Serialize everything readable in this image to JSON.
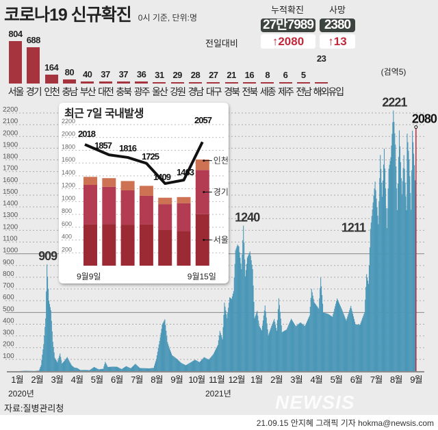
{
  "header": {
    "title": "코로나19 신규확진",
    "subtitle": "0시 기준, 단위:명",
    "cumulative_label": "누적확진",
    "cumulative_value": "27만7989",
    "deaths_label": "사망",
    "deaths_value": "2380",
    "prev_day_label": "전일대비",
    "cumulative_change": "↑2080",
    "deaths_change": "↑13"
  },
  "chart_data": [
    {
      "type": "bar",
      "categories": [
        "서울",
        "경기",
        "인천",
        "충남",
        "부산",
        "대전",
        "충북",
        "광주",
        "울산",
        "강원",
        "경남",
        "대구",
        "경북",
        "전북",
        "세종",
        "제주",
        "전남",
        "해외유입"
      ],
      "values": [
        804,
        688,
        164,
        80,
        40,
        37,
        37,
        36,
        31,
        29,
        28,
        27,
        21,
        16,
        8,
        6,
        5,
        23
      ],
      "annotation": "(검역5)",
      "colors": {
        "bar": "#a6343f"
      }
    },
    {
      "type": "bar",
      "ylim": [
        0,
        2200
      ],
      "yticks": [
        100,
        200,
        300,
        400,
        500,
        600,
        700,
        800,
        900,
        1000,
        1100,
        1200,
        1300,
        1400,
        1500,
        1600,
        1700,
        1800,
        1900,
        2000,
        2100,
        2200
      ],
      "grid": true,
      "xlabels": [
        "1월",
        "2월",
        "3월",
        "4월",
        "5월",
        "6월",
        "7월",
        "8월",
        "9월",
        "10월",
        "11월",
        "12월",
        "1월",
        "2월",
        "3월",
        "4월",
        "5월",
        "6월",
        "7월",
        "8월",
        "9월"
      ],
      "year_labels": [
        "2020년",
        "2021년"
      ],
      "annotations": [
        {
          "date": "2020-02-29",
          "label": "909"
        },
        {
          "date": "2020-12-25",
          "label": "1240"
        },
        {
          "date": "2021-07-07",
          "label": "1211"
        },
        {
          "date": "2021-08-11",
          "label": "2221"
        },
        {
          "date": "2021-09-15",
          "label": "2080"
        }
      ],
      "colors": {
        "bar": "#4b97b7",
        "today": "#c0283a"
      },
      "points": [
        [
          "2020-01-20",
          1
        ],
        [
          "2020-01-27",
          3
        ],
        [
          "2020-02-03",
          2
        ],
        [
          "2020-02-10",
          1
        ],
        [
          "2020-02-17",
          5
        ],
        [
          "2020-02-20",
          50
        ],
        [
          "2020-02-24",
          230
        ],
        [
          "2020-02-27",
          450
        ],
        [
          "2020-02-29",
          909
        ],
        [
          "2020-03-03",
          600
        ],
        [
          "2020-03-06",
          518
        ],
        [
          "2020-03-09",
          250
        ],
        [
          "2020-03-12",
          114
        ],
        [
          "2020-03-16",
          74
        ],
        [
          "2020-03-20",
          150
        ],
        [
          "2020-03-23",
          64
        ],
        [
          "2020-03-27",
          90
        ],
        [
          "2020-03-31",
          120
        ],
        [
          "2020-04-03",
          86
        ],
        [
          "2020-04-07",
          47
        ],
        [
          "2020-04-11",
          30
        ],
        [
          "2020-04-15",
          27
        ],
        [
          "2020-04-20",
          9
        ],
        [
          "2020-04-27",
          10
        ],
        [
          "2020-05-04",
          8
        ],
        [
          "2020-05-11",
          35
        ],
        [
          "2020-05-18",
          15
        ],
        [
          "2020-05-25",
          20
        ],
        [
          "2020-05-28",
          79
        ],
        [
          "2020-06-01",
          35
        ],
        [
          "2020-06-08",
          38
        ],
        [
          "2020-06-15",
          37
        ],
        [
          "2020-06-22",
          17
        ],
        [
          "2020-06-29",
          42
        ],
        [
          "2020-07-06",
          24
        ],
        [
          "2020-07-13",
          62
        ],
        [
          "2020-07-20",
          26
        ],
        [
          "2020-07-27",
          25
        ],
        [
          "2020-08-03",
          23
        ],
        [
          "2020-08-10",
          28
        ],
        [
          "2020-08-14",
          103
        ],
        [
          "2020-08-17",
          197
        ],
        [
          "2020-08-20",
          288
        ],
        [
          "2020-08-23",
          397
        ],
        [
          "2020-08-27",
          441
        ],
        [
          "2020-08-31",
          248
        ],
        [
          "2020-09-03",
          195
        ],
        [
          "2020-09-07",
          136
        ],
        [
          "2020-09-14",
          106
        ],
        [
          "2020-09-21",
          70
        ],
        [
          "2020-09-28",
          50
        ],
        [
          "2020-10-05",
          73
        ],
        [
          "2020-10-12",
          97
        ],
        [
          "2020-10-19",
          76
        ],
        [
          "2020-10-26",
          119
        ],
        [
          "2020-11-02",
          97
        ],
        [
          "2020-11-09",
          143
        ],
        [
          "2020-11-16",
          223
        ],
        [
          "2020-11-19",
          343
        ],
        [
          "2020-11-23",
          271
        ],
        [
          "2020-11-26",
          583
        ],
        [
          "2020-11-30",
          451
        ],
        [
          "2020-12-04",
          629
        ],
        [
          "2020-12-07",
          615
        ],
        [
          "2020-12-10",
          682
        ],
        [
          "2020-12-13",
          1030
        ],
        [
          "2020-12-16",
          1078
        ],
        [
          "2020-12-18",
          1062
        ],
        [
          "2020-12-22",
          869
        ],
        [
          "2020-12-25",
          1240
        ],
        [
          "2020-12-28",
          808
        ],
        [
          "2020-12-31",
          967
        ],
        [
          "2021-01-04",
          1020
        ],
        [
          "2021-01-08",
          869
        ],
        [
          "2021-01-11",
          451
        ],
        [
          "2021-01-15",
          513
        ],
        [
          "2021-01-18",
          389
        ],
        [
          "2021-01-22",
          346
        ],
        [
          "2021-01-27",
          559
        ],
        [
          "2021-02-01",
          305
        ],
        [
          "2021-02-05",
          370
        ],
        [
          "2021-02-10",
          444
        ],
        [
          "2021-02-14",
          344
        ],
        [
          "2021-02-17",
          621
        ],
        [
          "2021-02-22",
          332
        ],
        [
          "2021-03-01",
          355
        ],
        [
          "2021-03-08",
          446
        ],
        [
          "2021-03-15",
          382
        ],
        [
          "2021-03-22",
          415
        ],
        [
          "2021-03-29",
          384
        ],
        [
          "2021-04-05",
          473
        ],
        [
          "2021-04-08",
          700
        ],
        [
          "2021-04-12",
          587
        ],
        [
          "2021-04-19",
          532
        ],
        [
          "2021-04-22",
          797
        ],
        [
          "2021-04-26",
          500
        ],
        [
          "2021-05-03",
          488
        ],
        [
          "2021-05-10",
          463
        ],
        [
          "2021-05-17",
          619
        ],
        [
          "2021-05-24",
          530
        ],
        [
          "2021-05-31",
          430
        ],
        [
          "2021-06-07",
          556
        ],
        [
          "2021-06-14",
          399
        ],
        [
          "2021-06-21",
          395
        ],
        [
          "2021-06-28",
          501
        ],
        [
          "2021-07-01",
          826
        ],
        [
          "2021-07-04",
          743
        ],
        [
          "2021-07-07",
          1211
        ],
        [
          "2021-07-10",
          1378
        ],
        [
          "2021-07-14",
          1615
        ],
        [
          "2021-07-19",
          1252
        ],
        [
          "2021-07-22",
          1842
        ],
        [
          "2021-07-25",
          1487
        ],
        [
          "2021-07-28",
          1896
        ],
        [
          "2021-08-01",
          1219
        ],
        [
          "2021-08-04",
          1725
        ],
        [
          "2021-08-07",
          1823
        ],
        [
          "2021-08-11",
          2221
        ],
        [
          "2021-08-14",
          1930
        ],
        [
          "2021-08-17",
          1372
        ],
        [
          "2021-08-20",
          2052
        ],
        [
          "2021-08-24",
          1508
        ],
        [
          "2021-08-27",
          1841
        ],
        [
          "2021-08-31",
          1372
        ],
        [
          "2021-09-01",
          2024
        ],
        [
          "2021-09-04",
          1804
        ],
        [
          "2021-09-07",
          1375
        ],
        [
          "2021-09-09",
          2049
        ],
        [
          "2021-09-12",
          1755
        ],
        [
          "2021-09-14",
          1497
        ],
        [
          "2021-09-15",
          2080
        ]
      ]
    },
    {
      "type": "bar+line",
      "title": "최근 7일 국내발생",
      "ylim": [
        0,
        2200
      ],
      "yticks": [
        200,
        400,
        600,
        800,
        1000,
        1200,
        1400,
        1600,
        1800,
        2000,
        2200
      ],
      "xlabels": [
        "9월9일",
        "9월15일"
      ],
      "categories": [
        "9/9",
        "9/10",
        "9/11",
        "9/12",
        "9/13",
        "9/14",
        "9/15"
      ],
      "series": [
        {
          "name": "서울",
          "values": [
            645,
            650,
            640,
            645,
            560,
            540,
            804
          ],
          "color": "#9c2a35"
        },
        {
          "name": "경기",
          "values": [
            615,
            580,
            535,
            445,
            400,
            435,
            688
          ],
          "color": "#b33b52"
        },
        {
          "name": "인천",
          "values": [
            125,
            135,
            145,
            155,
            100,
            95,
            164
          ],
          "color": "#cd7252"
        }
      ],
      "line": {
        "values": [
          2018,
          1857,
          1816,
          1725,
          1409,
          1463,
          2057
        ],
        "color": "#111111"
      }
    }
  ],
  "footer": {
    "source": "자료:질병관리청",
    "credit": "21.09.15 안지혜 그래픽 기자 hokma@newsis.com",
    "watermark": "NEWSIS"
  }
}
